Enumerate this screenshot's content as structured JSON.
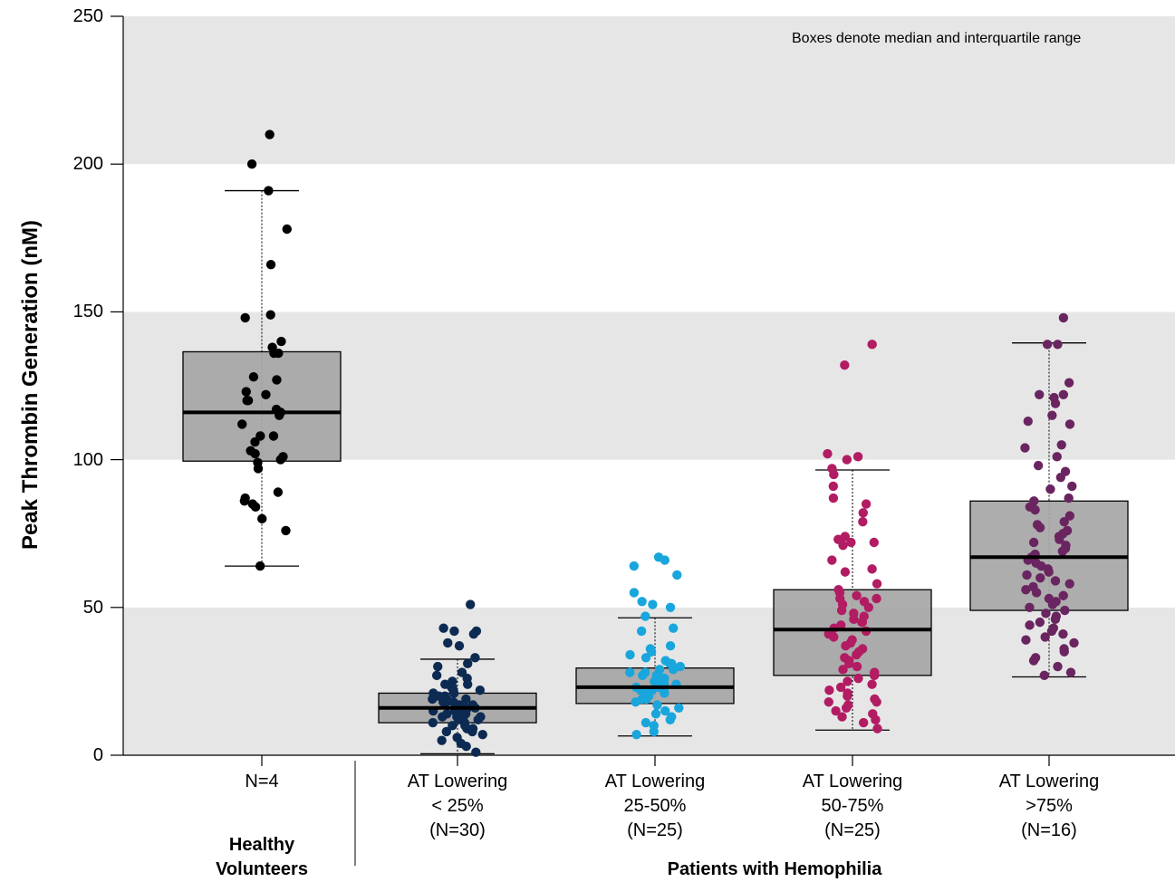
{
  "chart_data": {
    "type": "box-plot with jittered points",
    "ylabel": "Peak Thrombin Generation (nM)",
    "ylim": [
      0,
      250
    ],
    "yticks": [
      "0",
      "50",
      "100",
      "150",
      "200",
      "250"
    ],
    "annotation": "Boxes denote median and interquartile range",
    "background_bands": "alternating grey/white",
    "groups": [
      {
        "label": "Healthy\nVolunteers",
        "categories": [
          0
        ]
      },
      {
        "label": "Patients with Hemophilia",
        "categories": [
          1,
          2,
          3,
          4
        ]
      }
    ],
    "categories": [
      {
        "lines": [
          "N=4"
        ],
        "color": "#000000",
        "box": {
          "q1": 99.5,
          "median": 116,
          "q3": 136.5,
          "whisker_low": 64,
          "whisker_high": 191
        }
      },
      {
        "lines": [
          "AT Lowering",
          "< 25%",
          "(N=30)"
        ],
        "color": "#0d2b52",
        "box": {
          "q1": 11,
          "median": 16,
          "q3": 21,
          "whisker_low": 0.5,
          "whisker_high": 32.5
        }
      },
      {
        "lines": [
          "AT Lowering",
          "25-50%",
          "(N=25)"
        ],
        "color": "#19a6dc",
        "box": {
          "q1": 17.5,
          "median": 23,
          "q3": 29.5,
          "whisker_low": 6.5,
          "whisker_high": 46.5
        }
      },
      {
        "lines": [
          "AT Lowering",
          "50-75%",
          "(N=25)"
        ],
        "color": "#b21c63",
        "box": {
          "q1": 27,
          "median": 42.5,
          "q3": 56,
          "whisker_low": 8.5,
          "whisker_high": 96.5
        }
      },
      {
        "lines": [
          "AT Lowering",
          ">75%",
          "(N=16)"
        ],
        "color": "#6a2561",
        "box": {
          "q1": 49,
          "median": 67,
          "q3": 86,
          "whisker_low": 26.5,
          "whisker_high": 139.5
        }
      }
    ],
    "points": [
      {
        "category": 0,
        "values": [
          210,
          200,
          191,
          178,
          166,
          149,
          148,
          140,
          138,
          136,
          136,
          128,
          127,
          123,
          122,
          120,
          120,
          117,
          116,
          115,
          112,
          108,
          108,
          106,
          103,
          102,
          101,
          100,
          99,
          97,
          89,
          87,
          86,
          85,
          84,
          80,
          76,
          64
        ]
      },
      {
        "category": 1,
        "values": [
          51,
          43,
          42,
          42,
          41,
          38,
          37,
          33,
          31,
          30,
          28,
          27,
          26,
          25,
          24,
          24,
          23,
          23,
          22,
          22,
          21,
          21,
          20,
          20,
          19,
          19,
          19,
          18,
          18,
          18,
          17,
          17,
          17,
          16,
          16,
          16,
          15,
          15,
          15,
          14,
          14,
          14,
          13,
          13,
          13,
          12,
          12,
          12,
          11,
          11,
          10,
          10,
          9,
          9,
          8,
          8,
          7,
          6,
          5,
          4,
          3,
          1
        ]
      },
      {
        "category": 2,
        "values": [
          67,
          66,
          64,
          61,
          55,
          52,
          51,
          50,
          47,
          43,
          42,
          37,
          36,
          35,
          34,
          33,
          32,
          31,
          31,
          30,
          29,
          29,
          28,
          28,
          27,
          27,
          26,
          26,
          25,
          25,
          25,
          24,
          24,
          23,
          23,
          22,
          22,
          22,
          21,
          21,
          20,
          20,
          19,
          19,
          18,
          17,
          16,
          15,
          14,
          13,
          12,
          11,
          10,
          8,
          7
        ]
      },
      {
        "category": 3,
        "values": [
          139,
          132,
          102,
          101,
          100,
          97,
          95,
          91,
          87,
          85,
          82,
          79,
          74,
          73,
          72,
          72,
          71,
          66,
          63,
          62,
          58,
          56,
          55,
          54,
          53,
          53,
          52,
          51,
          50,
          49,
          48,
          47,
          46,
          45,
          45,
          44,
          43,
          42,
          41,
          40,
          39,
          38,
          37,
          36,
          35,
          34,
          33,
          32,
          31,
          30,
          29,
          28,
          27,
          26,
          25,
          24,
          23,
          22,
          21,
          20,
          19,
          18,
          18,
          17,
          16,
          15,
          14,
          13,
          12,
          11,
          9
        ]
      },
      {
        "category": 4,
        "values": [
          148,
          139,
          139,
          126,
          122,
          122,
          121,
          119,
          115,
          113,
          112,
          105,
          104,
          101,
          98,
          96,
          94,
          91,
          90,
          87,
          86,
          84,
          83,
          81,
          79,
          78,
          77,
          76,
          75,
          74,
          73,
          72,
          71,
          70,
          69,
          68,
          67,
          66,
          65,
          64,
          63,
          62,
          61,
          60,
          59,
          58,
          57,
          56,
          55,
          54,
          53,
          52,
          51,
          50,
          49,
          48,
          47,
          46,
          45,
          44,
          43,
          42,
          41,
          40,
          39,
          38,
          36,
          35,
          33,
          32,
          30,
          28,
          27
        ]
      }
    ]
  }
}
